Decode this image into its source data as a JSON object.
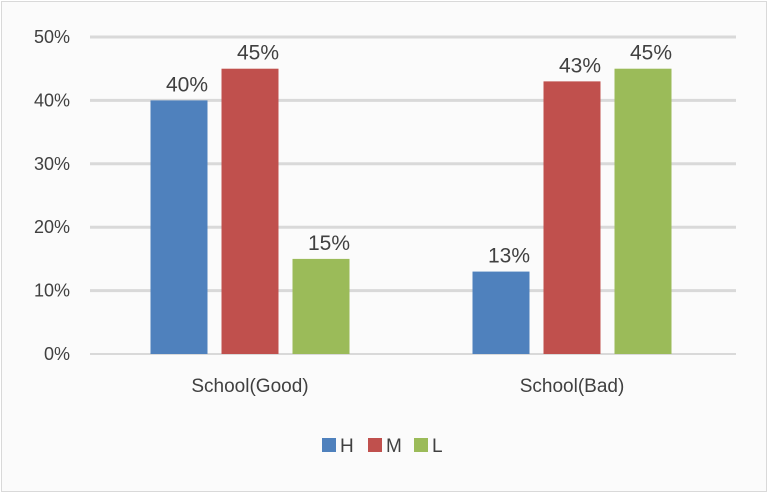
{
  "chart_data": {
    "type": "bar",
    "categories": [
      "School(Good)",
      "School(Bad)"
    ],
    "series": [
      {
        "name": "H",
        "values": [
          40,
          13
        ],
        "labels": [
          "40%",
          "13%"
        ],
        "color": "#4f81bd"
      },
      {
        "name": "M",
        "values": [
          45,
          43
        ],
        "labels": [
          "45%",
          "43%"
        ],
        "color": "#c0504d"
      },
      {
        "name": "L",
        "values": [
          15,
          45
        ],
        "labels": [
          "15%",
          "45%"
        ],
        "color": "#9bbb59"
      }
    ],
    "ylim": [
      0,
      50
    ],
    "yticks": [
      0,
      10,
      20,
      30,
      40,
      50
    ],
    "ytick_labels": [
      "0%",
      "10%",
      "20%",
      "30%",
      "40%",
      "50%"
    ],
    "grid": true,
    "legend_position": "bottom",
    "title": "",
    "xlabel": "",
    "ylabel": ""
  }
}
